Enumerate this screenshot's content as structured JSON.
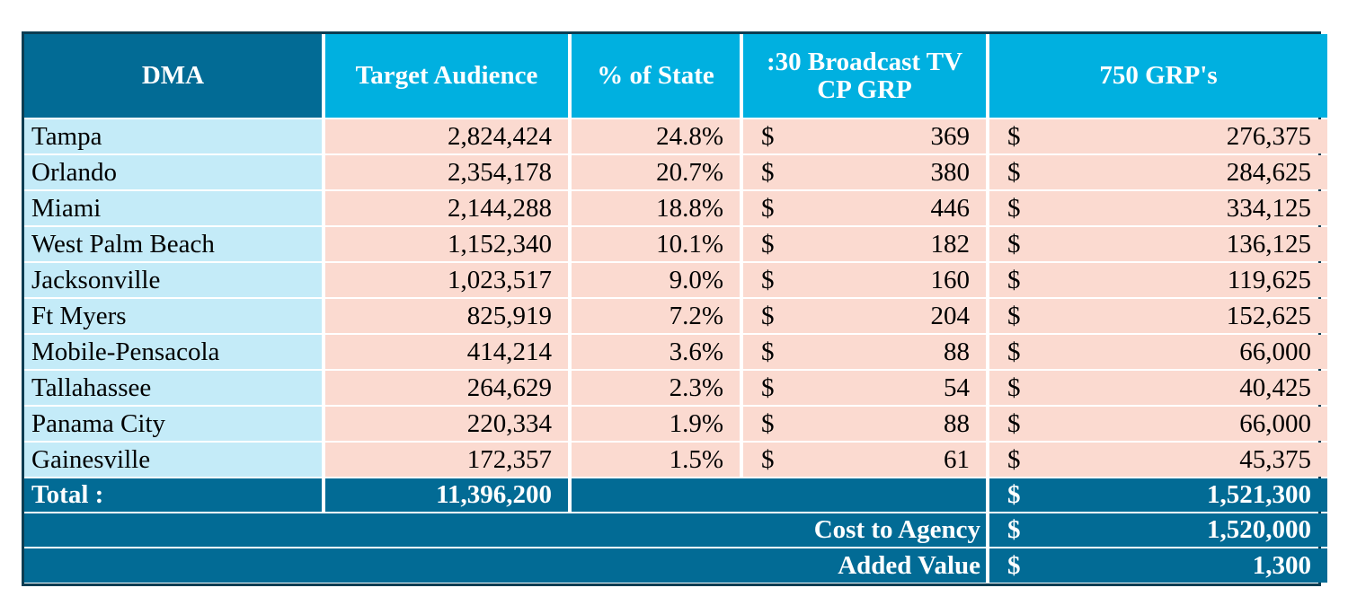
{
  "headers": {
    "dma": "DMA",
    "target_audience": "Target Audience",
    "pct_state": "% of State",
    "cp_grp_line1": ":30 Broadcast TV",
    "cp_grp_line2": "CP GRP",
    "grps": "750 GRP's"
  },
  "currency_symbol": "$",
  "rows": [
    {
      "dma": "Tampa",
      "target": "2,824,424",
      "pct": "24.8%",
      "cp_grp": "369",
      "grp_cost": "276,375"
    },
    {
      "dma": "Orlando",
      "target": "2,354,178",
      "pct": "20.7%",
      "cp_grp": "380",
      "grp_cost": "284,625"
    },
    {
      "dma": "Miami",
      "target": "2,144,288",
      "pct": "18.8%",
      "cp_grp": "446",
      "grp_cost": "334,125"
    },
    {
      "dma": "West Palm Beach",
      "target": "1,152,340",
      "pct": "10.1%",
      "cp_grp": "182",
      "grp_cost": "136,125"
    },
    {
      "dma": "Jacksonville",
      "target": "1,023,517",
      "pct": "9.0%",
      "cp_grp": "160",
      "grp_cost": "119,625"
    },
    {
      "dma": "Ft Myers",
      "target": "825,919",
      "pct": "7.2%",
      "cp_grp": "204",
      "grp_cost": "152,625"
    },
    {
      "dma": "Mobile-Pensacola",
      "target": "414,214",
      "pct": "3.6%",
      "cp_grp": "88",
      "grp_cost": "66,000"
    },
    {
      "dma": "Tallahassee",
      "target": "264,629",
      "pct": "2.3%",
      "cp_grp": "54",
      "grp_cost": "40,425"
    },
    {
      "dma": "Panama City",
      "target": "220,334",
      "pct": "1.9%",
      "cp_grp": "88",
      "grp_cost": "66,000"
    },
    {
      "dma": "Gainesville",
      "target": "172,357",
      "pct": "1.5%",
      "cp_grp": "61",
      "grp_cost": "45,375"
    }
  ],
  "total": {
    "label": "Total  :",
    "target": "11,396,200",
    "grp_cost": "1,521,300"
  },
  "cost_to_agency": {
    "label": "Cost to Agency",
    "value": "1,520,000"
  },
  "added_value": {
    "label": "Added Value",
    "value": "1,300"
  },
  "colors": {
    "header_dark": "#026b95",
    "header_light": "#00b0e0",
    "dma_cell": "#c4ebf8",
    "value_cell": "#fbdad0",
    "border": "#0b3d52"
  }
}
